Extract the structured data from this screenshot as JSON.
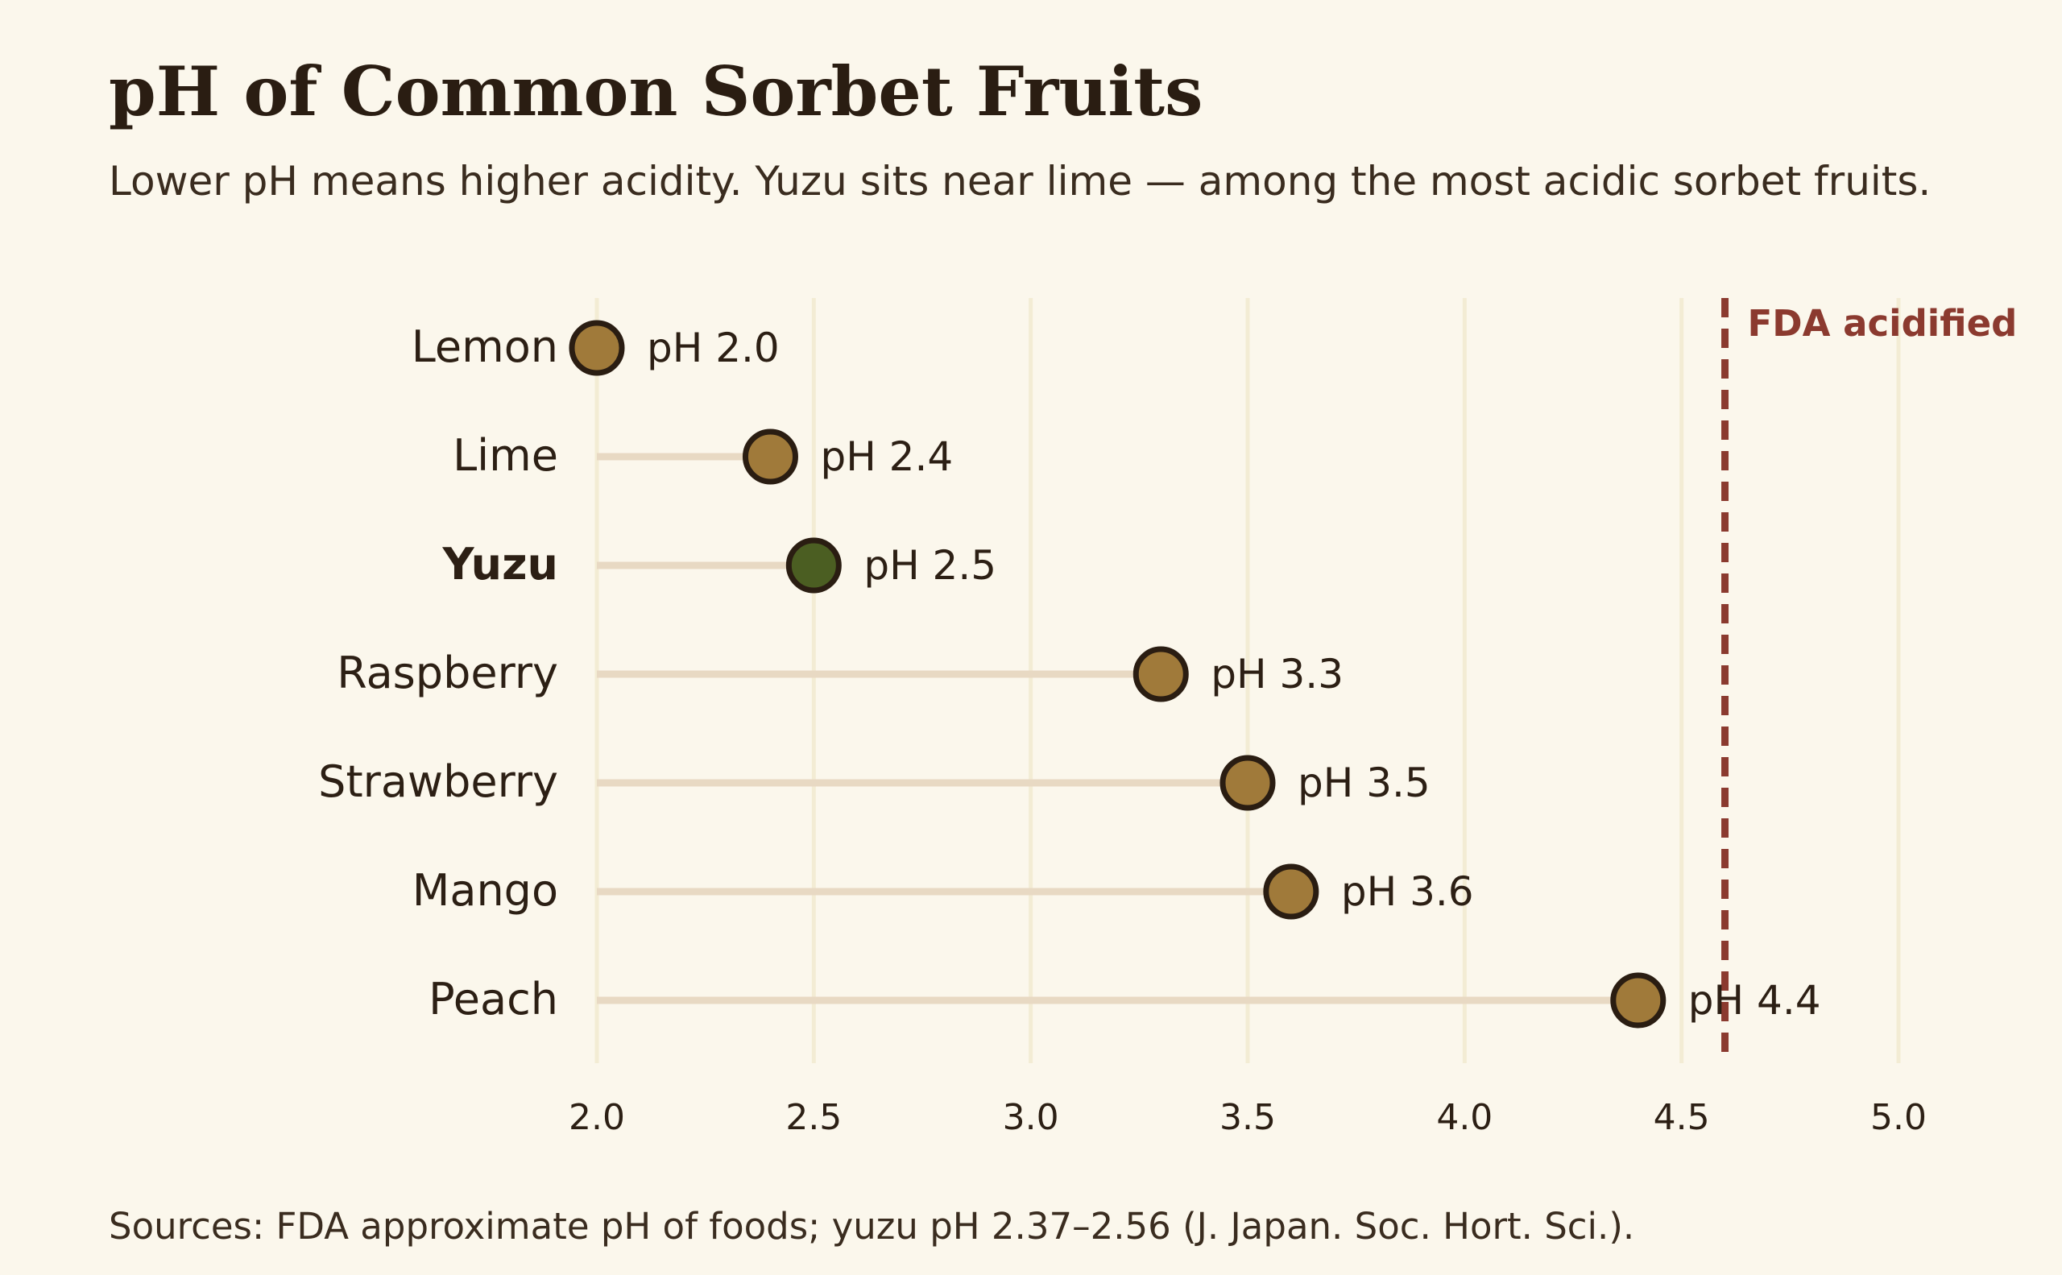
{
  "chart_data": {
    "type": "lollipop",
    "title": "pH of Common Sorbet Fruits",
    "subtitle": "Lower pH means higher acidity. Yuzu sits near lime — among the most acidic sorbet fruits.",
    "source": "Sources: FDA approximate pH of foods; yuzu pH 2.37–2.56 (J. Japan. Soc. Hort. Sci.).",
    "xlabel": "",
    "ylabel": "",
    "xlim": [
      2.0,
      5.0
    ],
    "xticks": [
      "2.0",
      "2.5",
      "3.0",
      "3.5",
      "4.0",
      "4.5",
      "5.0"
    ],
    "grid": "vertical",
    "categories": [
      "Lemon",
      "Lime",
      "Yuzu",
      "Raspberry",
      "Strawberry",
      "Mango",
      "Peach"
    ],
    "values": [
      2.0,
      2.4,
      2.5,
      3.3,
      3.5,
      3.6,
      4.4
    ],
    "value_labels": [
      "pH 2.0",
      "pH 2.4",
      "pH 2.5",
      "pH 3.3",
      "pH 3.5",
      "pH 3.6",
      "pH 4.4"
    ],
    "highlight": "Yuzu",
    "reference_line": {
      "value": 4.6,
      "label": "FDA acidified"
    },
    "colors": {
      "point": "#a07a3a",
      "highlight_point": "#4b5e22",
      "point_outline": "#2a1d12",
      "stem": "#e8d9c3",
      "grid": "#f3ecd4",
      "reference": "#8b3a2f",
      "text": "#2c1f14"
    }
  }
}
